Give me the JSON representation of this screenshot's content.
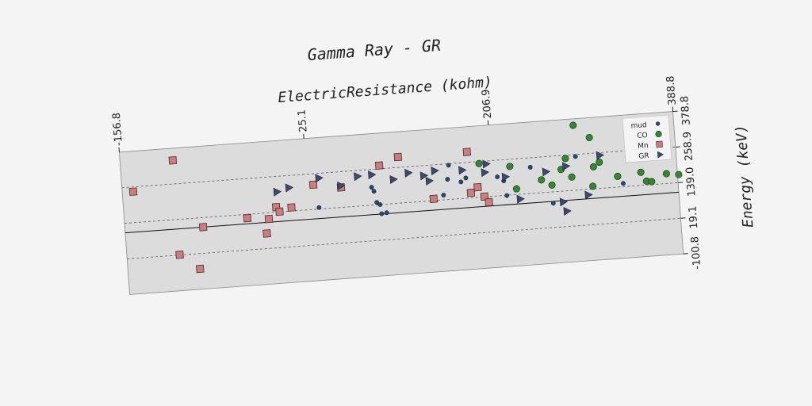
{
  "chart_data": {
    "type": "scatter",
    "title": "Gamma Ray - GR",
    "xlabel": "ElectricResistance (kohm)",
    "ylabel": "Energy (keV)",
    "xlim": [
      -156.8,
      388.8
    ],
    "ylim": [
      -100.8,
      378.8
    ],
    "x_ticks": [
      "-156.8",
      "25.1",
      "206.9",
      "388.8"
    ],
    "y_ticks": [
      "378.8",
      "258.9",
      "139.0",
      "19.1",
      "-100.8"
    ],
    "grid": "dashed horizontal",
    "legend_position": "top-right",
    "series": [
      {
        "name": "mud",
        "marker": "circle",
        "color": "#1f4e79",
        "points": [
          [
            35,
            144
          ],
          [
            88,
            199
          ],
          [
            90,
            185
          ],
          [
            92,
            147
          ],
          [
            95,
            139
          ],
          [
            96,
            108
          ],
          [
            101,
            110
          ],
          [
            158,
            155
          ],
          [
            163,
            207
          ],
          [
            165,
            254
          ],
          [
            176,
            195
          ],
          [
            181,
            207
          ],
          [
            212,
            203
          ],
          [
            218,
            188
          ],
          [
            220,
            138
          ],
          [
            245,
            227
          ],
          [
            265,
            101
          ],
          [
            290,
            252
          ],
          [
            335,
            150
          ]
        ]
      },
      {
        "name": "CO",
        "marker": "circle",
        "color": "#2e8b2e",
        "points": [
          [
            195,
            252
          ],
          [
            225,
            235
          ],
          [
            230,
            158
          ],
          [
            255,
            182
          ],
          [
            265,
            162
          ],
          [
            275,
            212
          ],
          [
            280,
            248
          ],
          [
            285,
            184
          ],
          [
            307,
            213
          ],
          [
            305,
            148
          ],
          [
            313,
            227
          ],
          [
            330,
            175
          ],
          [
            353,
            183
          ],
          [
            358,
            152
          ],
          [
            363,
            149
          ],
          [
            366,
            253
          ],
          [
            377,
            243
          ],
          [
            378,
            172
          ],
          [
            390,
            166
          ],
          [
            290,
            357
          ],
          [
            305,
            312
          ]
        ]
      },
      {
        "name": "Mn",
        "marker": "square",
        "color": "#d47a7a",
        "points": [
          [
            -146,
            243
          ],
          [
            -105,
            338
          ],
          [
            -105,
            20
          ],
          [
            -86,
            -32
          ],
          [
            -80,
            107
          ],
          [
            -36,
            126
          ],
          [
            -18,
            70
          ],
          [
            -15,
            118
          ],
          [
            -7,
            156
          ],
          [
            -4,
            140
          ],
          [
            8,
            151
          ],
          [
            31,
            222
          ],
          [
            58,
            206
          ],
          [
            97,
            270
          ],
          [
            116,
            294
          ],
          [
            148,
            145
          ],
          [
            185,
            156
          ],
          [
            184,
            294
          ],
          [
            192,
            173
          ],
          [
            198,
            140
          ],
          [
            202,
            120
          ]
        ]
      },
      {
        "name": "GR",
        "marker": "triangle",
        "color": "#3a4a78",
        "points": [
          [
            -5,
            207
          ],
          [
            7,
            218
          ],
          [
            37,
            243
          ],
          [
            58,
            212
          ],
          [
            75,
            239
          ],
          [
            89,
            241
          ],
          [
            110,
            220
          ],
          [
            125,
            238
          ],
          [
            140,
            225
          ],
          [
            145,
            206
          ],
          [
            151,
            239
          ],
          [
            178,
            234
          ],
          [
            200,
            221
          ],
          [
            202,
            249
          ],
          [
            220,
            201
          ],
          [
            233,
            123
          ],
          [
            260,
            208
          ],
          [
            275,
            103
          ],
          [
            278,
            71
          ],
          [
            280,
            222
          ],
          [
            300,
            120
          ],
          [
            314,
            250
          ]
        ]
      }
    ]
  }
}
